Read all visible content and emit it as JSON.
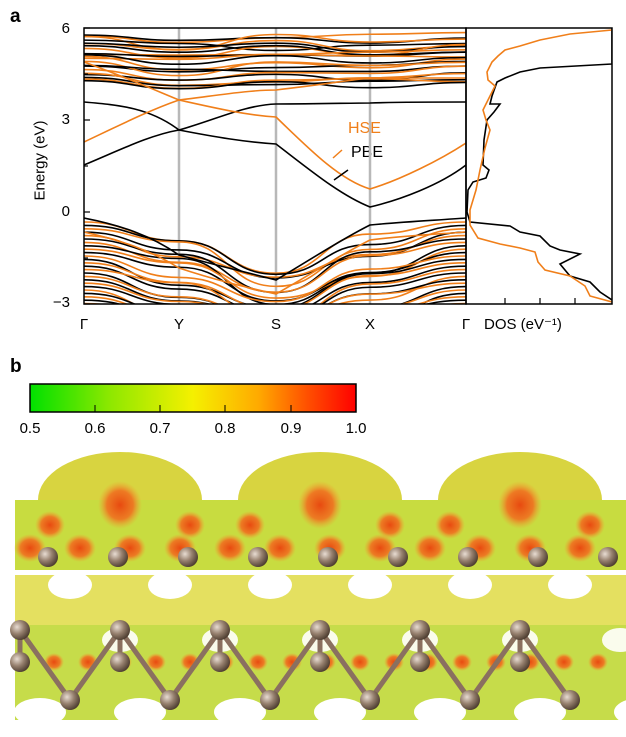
{
  "panel_a": {
    "letter": "a",
    "ylabel": "Energy (eV)",
    "yticks": [
      "6",
      "3",
      "0",
      "−3"
    ],
    "xticks": [
      "Γ",
      "Y",
      "S",
      "X",
      "Γ"
    ],
    "dos_label": "DOS (eV⁻¹)",
    "legend": {
      "hse": "HSE",
      "pbe": "PBE"
    },
    "colors": {
      "hse": "#f07f1a",
      "pbe": "#000000",
      "kpath_lines": "#b8b8b8"
    }
  },
  "panel_b": {
    "letter": "b",
    "colorbar_ticks": [
      "0.5",
      "0.6",
      "0.7",
      "0.8",
      "0.9",
      "1.0"
    ],
    "colorbar_colors": [
      "#00e000",
      "#7ee000",
      "#e8f000",
      "#ffb400",
      "#ff5a00",
      "#ff0000"
    ],
    "atom_color": "#8a7060"
  },
  "chart_data": {
    "type": "line",
    "xlabel": "",
    "ylabel": "Energy (eV)",
    "ylim": [
      -3,
      6
    ],
    "categories": [
      "Γ",
      "Y",
      "S",
      "X",
      "Γ"
    ],
    "series": [
      {
        "name": "HSE",
        "values": [
          [
            0,
            2.3
          ],
          [
            1,
            3.6
          ],
          [
            2,
            3.1
          ],
          [
            3,
            0.8
          ],
          [
            4,
            2.3
          ]
        ]
      },
      {
        "name": "PBE",
        "values": [
          [
            0,
            1.5
          ],
          [
            1,
            2.6
          ],
          [
            2,
            2.2
          ],
          [
            3,
            0.2
          ],
          [
            4,
            1.5
          ]
        ]
      }
    ]
  }
}
